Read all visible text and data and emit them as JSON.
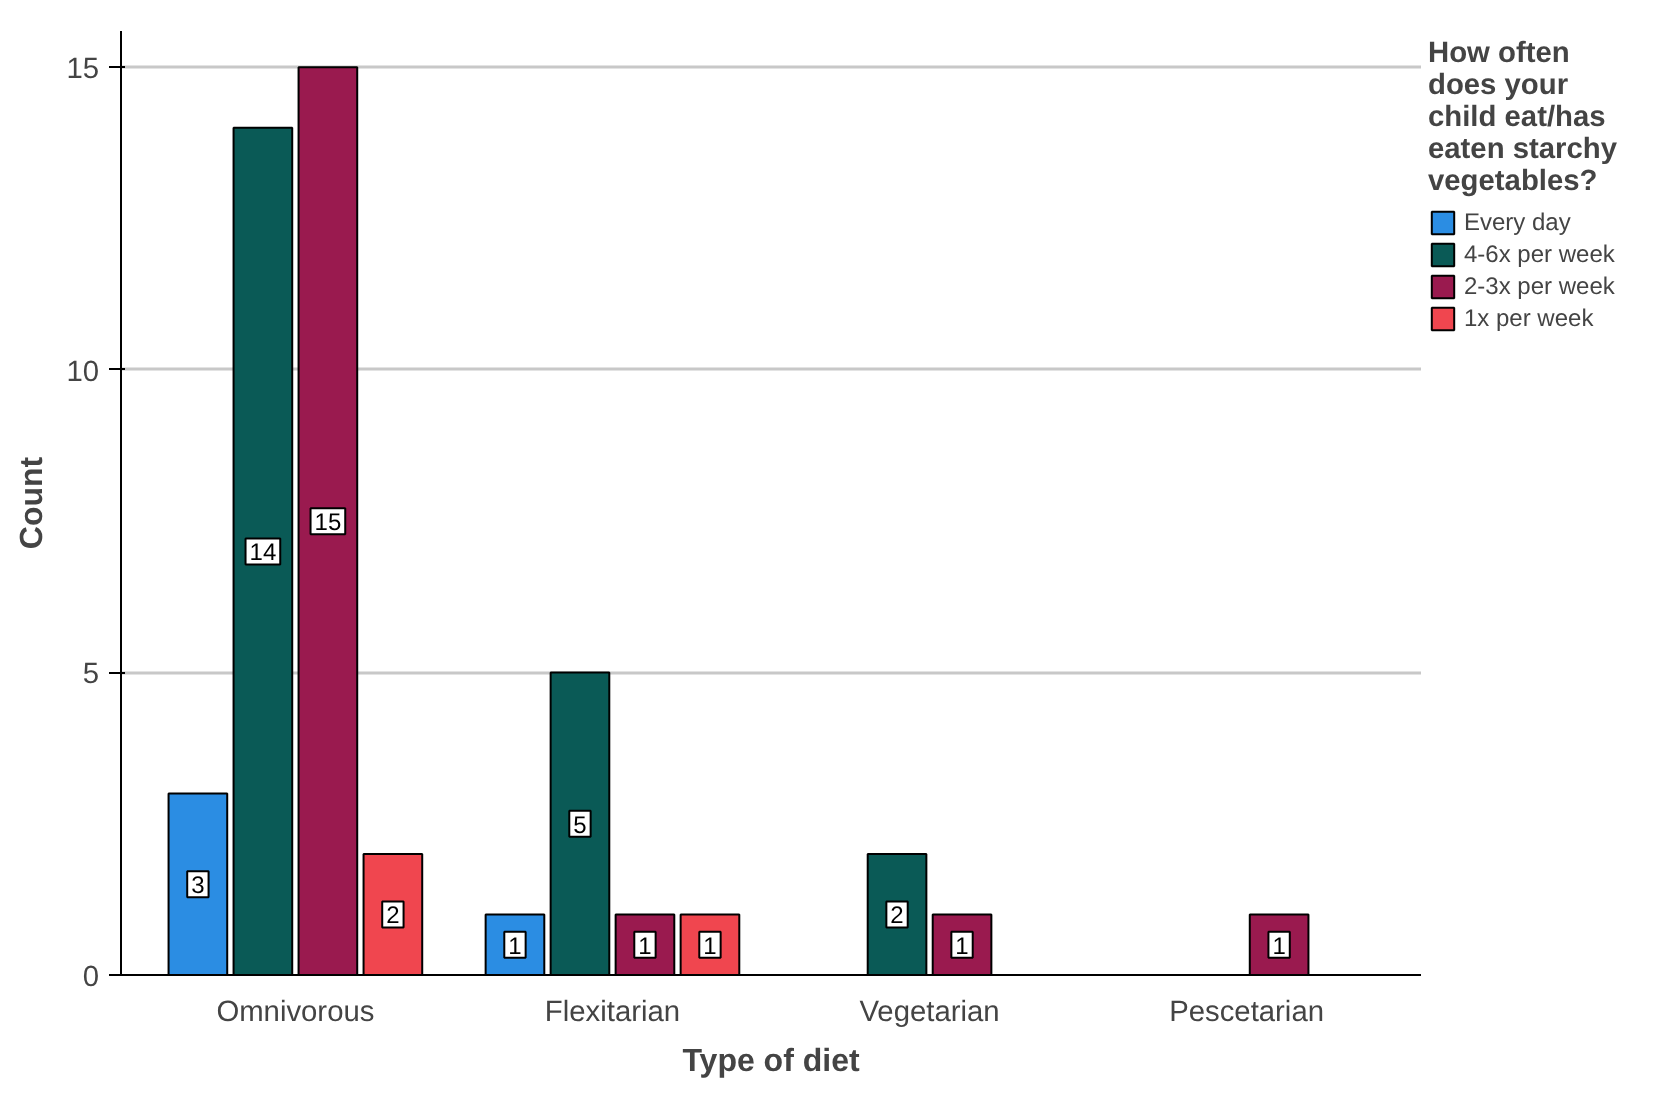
{
  "chart_data": {
    "type": "bar",
    "xlabel": "Type of diet",
    "ylabel": "Count",
    "legend_title": "How often does your child eat/has eaten starchy vegetables?",
    "categories": [
      "Omnivorous",
      "Flexitarian",
      "Vegetarian",
      "Pescetarian"
    ],
    "series": [
      {
        "name": "Every day",
        "color": "#2b8de3",
        "values": [
          3,
          1,
          0,
          0
        ],
        "value_labels": [
          "3",
          "1",
          null,
          null
        ]
      },
      {
        "name": "4-6x per week",
        "color": "#0a5a56",
        "values": [
          14,
          5,
          2,
          0
        ],
        "value_labels": [
          "14",
          "5",
          "2",
          null
        ]
      },
      {
        "name": "2-3x per week",
        "color": "#9a1a4f",
        "values": [
          15,
          1,
          1,
          1
        ],
        "value_labels": [
          "15",
          "1",
          "1",
          "1"
        ]
      },
      {
        "name": "1x per week",
        "color": "#f0464f",
        "values": [
          2,
          1,
          0,
          0
        ],
        "value_labels": [
          "2",
          "1",
          null,
          null
        ]
      }
    ],
    "ylim": [
      0,
      15.6
    ],
    "yticks": [
      0,
      5,
      10,
      15
    ],
    "grid": "y",
    "legend": "right"
  }
}
